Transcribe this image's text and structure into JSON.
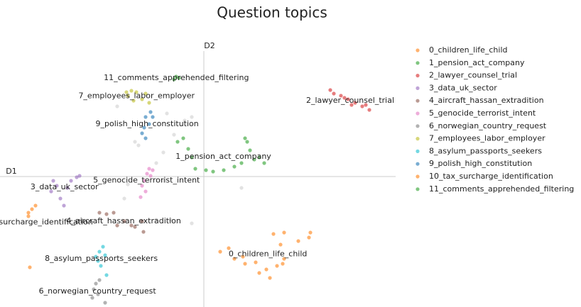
{
  "chart_data": {
    "type": "scatter",
    "title": "Question topics",
    "x_axis_label": "D1",
    "y_axis_label": "D2",
    "xlim": [
      -287,
      270
    ],
    "ylim": [
      -184,
      185
    ],
    "legend": "right",
    "series": [
      {
        "name": "0_children_life_child",
        "color": "#ff7f0e",
        "x": [
          35,
          43,
          58,
          73,
          88,
          103,
          113,
          108,
          98,
          113,
          133,
          148,
          150,
          23,
          78,
          93,
          111,
          55
        ],
        "y": [
          -101,
          -116,
          -123,
          -121,
          -131,
          -126,
          -116,
          -96,
          -81,
          -79,
          -91,
          -86,
          -79,
          -106,
          -136,
          -143,
          -123,
          -113
        ]
      },
      {
        "name": "1_pension_act_company",
        "color": "#2ca02c",
        "x": [
          58,
          61,
          65,
          71,
          78,
          85,
          53,
          43,
          28,
          13,
          3,
          -12,
          -22,
          -29,
          -37,
          -17
        ],
        "y": [
          54,
          49,
          37,
          24,
          27,
          19,
          19,
          14,
          9,
          7,
          9,
          11,
          39,
          54,
          49,
          27
        ]
      },
      {
        "name": "2_lawyer_counsel_trial",
        "color": "#d62728",
        "x": [
          178,
          183,
          193,
          203,
          213,
          223,
          233,
          228,
          208,
          198
        ],
        "y": [
          122,
          117,
          114,
          109,
          104,
          99,
          94,
          101,
          101,
          111
        ]
      },
      {
        "name": "3_data_uk_sector",
        "color": "#9467bd",
        "x": [
          -212,
          -207,
          -215,
          -202,
          -197,
          -192,
          -179,
          -175,
          -187
        ],
        "y": [
          -6,
          -13,
          -21,
          -31,
          -41,
          -16,
          -1,
          1,
          -6
        ]
      },
      {
        "name": "4_aircraft_hassan_extradition",
        "color": "#8c564b",
        "x": [
          -147,
          -137,
          -127,
          -122,
          -112,
          -102,
          -87,
          -85,
          -97
        ],
        "y": [
          -51,
          -53,
          -51,
          -69,
          -63,
          -69,
          -63,
          -78,
          -71
        ]
      },
      {
        "name": "5_genocide_terrorist_intent",
        "color": "#e377c2",
        "x": [
          -87,
          -84,
          -80,
          -77,
          -82,
          -89,
          -75,
          -72
        ],
        "y": [
          -13,
          -6,
          4,
          11,
          -21,
          -29,
          1,
          9
        ]
      },
      {
        "name": "6_norwegian_country_request",
        "color": "#7f7f7f",
        "x": [
          -152,
          -155,
          -149,
          -139,
          -157,
          -147
        ],
        "y": [
          -151,
          -159,
          -166,
          -178,
          -171,
          -146
        ]
      },
      {
        "name": "7_employees_labor_employer",
        "color": "#bcbd22",
        "x": [
          -109,
          -102,
          -95,
          -107,
          -99,
          -87,
          -82,
          -77
        ],
        "y": [
          119,
          121,
          119,
          114,
          107,
          109,
          117,
          104
        ]
      },
      {
        "name": "8_asylum_passports_seekers",
        "color": "#17becf",
        "x": [
          -152,
          -147,
          -142,
          -145,
          -137,
          -149,
          -139
        ],
        "y": [
          -113,
          -106,
          -99,
          -126,
          -139,
          -119,
          -111
        ]
      },
      {
        "name": "9_polish_high_constitution",
        "color": "#1f77b4",
        "x": [
          -82,
          -77,
          -87,
          -75,
          -82,
          -72,
          -84
        ],
        "y": [
          84,
          74,
          61,
          91,
          54,
          84,
          69
        ]
      },
      {
        "name": "10_tax_surcharge_identification",
        "color": "#ff7f0e",
        "x": [
          -247,
          -242,
          -237,
          -247,
          -245
        ],
        "y": [
          -51,
          -46,
          -41,
          -56,
          -128
        ]
      },
      {
        "name": "11_comments_apprehended_filtering",
        "color": "#2ca02c",
        "x": [
          -39,
          -35,
          -42
        ],
        "y": [
          141,
          139,
          137
        ]
      }
    ],
    "unassigned": {
      "color": "#cfcfcf",
      "x": [
        -122,
        -97,
        -57,
        -52,
        -27,
        -17,
        -42,
        -107,
        -112,
        -67,
        -47,
        -17,
        53,
        -67,
        -92,
        -57
      ],
      "y": [
        99,
        49,
        34,
        89,
        79,
        84,
        59,
        -11,
        -31,
        -61,
        -61,
        -66,
        -16,
        19,
        44,
        -6
      ]
    }
  }
}
